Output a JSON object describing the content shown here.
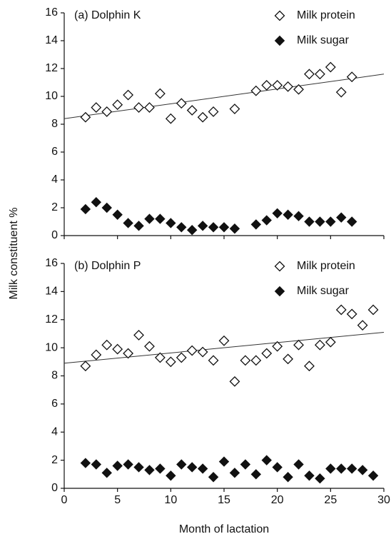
{
  "chart_data": [
    {
      "type": "scatter",
      "title": "(a) Dolphin K",
      "ylabel": "Milk constituent %",
      "xlim": [
        0,
        30
      ],
      "xticks": [
        0,
        5,
        10,
        15,
        20,
        25,
        30
      ],
      "ylim": [
        0,
        16
      ],
      "yticks": [
        0,
        2,
        4,
        6,
        8,
        10,
        12,
        14,
        16
      ],
      "series": [
        {
          "name": "Milk protein",
          "color": "#111111",
          "marker": "open-diamond",
          "x": [
            2,
            3,
            4,
            5,
            6,
            7,
            8,
            9,
            10,
            11,
            12,
            13,
            14,
            16,
            18,
            19,
            20,
            21,
            22,
            23,
            24,
            25,
            26,
            27
          ],
          "values": [
            8.5,
            9.2,
            8.9,
            9.4,
            10.1,
            9.2,
            9.2,
            10.2,
            8.4,
            9.5,
            9.0,
            8.5,
            8.9,
            9.1,
            10.4,
            10.8,
            10.8,
            10.7,
            10.5,
            11.6,
            11.6,
            12.1,
            10.3,
            11.4
          ]
        },
        {
          "name": "Milk sugar",
          "color": "#111111",
          "marker": "filled-diamond",
          "x": [
            2,
            3,
            4,
            5,
            6,
            7,
            8,
            9,
            10,
            11,
            12,
            13,
            14,
            15,
            16,
            18,
            19,
            20,
            21,
            22,
            23,
            24,
            25,
            26,
            27
          ],
          "values": [
            1.9,
            2.4,
            2.0,
            1.5,
            0.9,
            0.7,
            1.2,
            1.2,
            0.9,
            0.6,
            0.4,
            0.7,
            0.6,
            0.6,
            0.5,
            0.8,
            1.1,
            1.6,
            1.5,
            1.4,
            1.0,
            1.0,
            1.0,
            1.3,
            1.0
          ]
        }
      ],
      "fit_line": {
        "x": [
          0,
          30
        ],
        "values": [
          8.4,
          11.6
        ]
      }
    },
    {
      "type": "scatter",
      "title": "(b) Dolphin P",
      "xlabel": "Month of lactation",
      "xlim": [
        0,
        30
      ],
      "xticks": [
        0,
        5,
        10,
        15,
        20,
        25,
        30
      ],
      "ylim": [
        0,
        16
      ],
      "yticks": [
        0,
        2,
        4,
        6,
        8,
        10,
        12,
        14,
        16
      ],
      "series": [
        {
          "name": "Milk protein",
          "color": "#111111",
          "marker": "open-diamond",
          "x": [
            2,
            3,
            4,
            5,
            6,
            7,
            8,
            9,
            10,
            11,
            12,
            13,
            14,
            15,
            16,
            17,
            18,
            19,
            20,
            21,
            22,
            23,
            24,
            25,
            26,
            27,
            28,
            29
          ],
          "values": [
            8.7,
            9.5,
            10.2,
            9.9,
            9.6,
            10.9,
            10.1,
            9.3,
            9.0,
            9.3,
            9.8,
            9.7,
            9.1,
            10.5,
            7.6,
            9.1,
            9.1,
            9.6,
            10.1,
            9.2,
            10.2,
            8.7,
            10.2,
            10.4,
            12.7,
            12.4,
            11.6,
            12.7
          ]
        },
        {
          "name": "Milk sugar",
          "color": "#111111",
          "marker": "filled-diamond",
          "x": [
            2,
            3,
            4,
            5,
            6,
            7,
            8,
            9,
            10,
            11,
            12,
            13,
            14,
            15,
            16,
            17,
            18,
            19,
            20,
            21,
            22,
            23,
            24,
            25,
            26,
            27,
            28,
            29
          ],
          "values": [
            1.8,
            1.7,
            1.1,
            1.6,
            1.7,
            1.5,
            1.3,
            1.4,
            0.9,
            1.7,
            1.5,
            1.4,
            0.8,
            1.9,
            1.1,
            1.7,
            1.0,
            2.0,
            1.5,
            0.8,
            1.7,
            0.9,
            0.7,
            1.4,
            1.4,
            1.4,
            1.3,
            0.9
          ]
        }
      ],
      "fit_line": {
        "x": [
          0,
          30
        ],
        "values": [
          8.9,
          11.1
        ]
      }
    }
  ]
}
